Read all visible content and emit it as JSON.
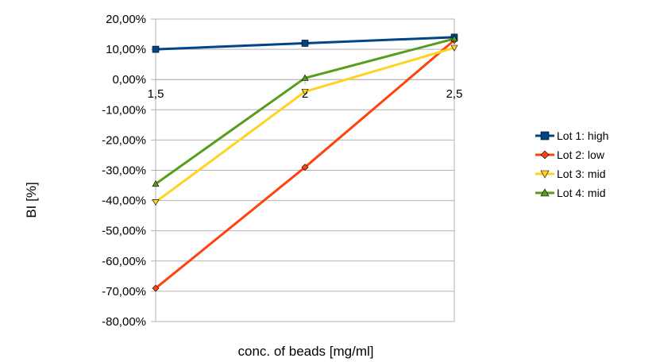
{
  "chart_data": {
    "type": "line",
    "title": "",
    "xlabel": "conc. of beads [mg/ml]",
    "ylabel": "BI [%]",
    "categories": [
      "1,5",
      "2",
      "2,5"
    ],
    "ylim": [
      -0.8,
      0.2
    ],
    "ytick_step": 0.1,
    "y_tick_labels": [
      "20,00%",
      "10,00%",
      "0,00%",
      "-10,00%",
      "-20,00%",
      "-30,00%",
      "-40,00%",
      "-50,00%",
      "-60,00%",
      "-70,00%",
      "-80,00%"
    ],
    "grid": true,
    "legend_position": "right",
    "series": [
      {
        "name": "Lot 1: high",
        "values": [
          0.1,
          0.12,
          0.14
        ],
        "color": "#004586",
        "marker": "square"
      },
      {
        "name": "Lot 2: low",
        "values": [
          -0.69,
          -0.29,
          0.13
        ],
        "color": "#ff420e",
        "marker": "diamond"
      },
      {
        "name": "Lot 3: mid",
        "values": [
          -0.405,
          -0.04,
          0.105
        ],
        "color": "#ffd320",
        "marker": "triangle-down"
      },
      {
        "name": "Lot 4: mid",
        "values": [
          -0.345,
          0.005,
          0.135
        ],
        "color": "#579d1c",
        "marker": "triangle-up"
      }
    ]
  }
}
